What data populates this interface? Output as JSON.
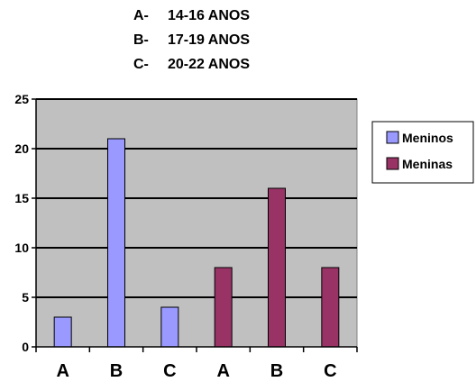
{
  "header_legend": [
    {
      "code": "A-",
      "label": "14-16 ANOS"
    },
    {
      "code": "B-",
      "label": "17-19 ANOS"
    },
    {
      "code": "C-",
      "label": "20-22 ANOS"
    }
  ],
  "chart_data": {
    "type": "bar",
    "categories": [
      "A",
      "B",
      "C",
      "A",
      "B",
      "C"
    ],
    "series": [
      {
        "name": "Meninos",
        "color": "#9999ff",
        "values": [
          3,
          21,
          4,
          null,
          null,
          null
        ]
      },
      {
        "name": "Meninas",
        "color": "#993366",
        "values": [
          null,
          null,
          null,
          8,
          16,
          8
        ]
      }
    ],
    "yticks": [
      "0",
      "5",
      "10",
      "15",
      "20",
      "25"
    ],
    "ylim": [
      0,
      25
    ],
    "grid": true,
    "plot_background": "#c0c0c0",
    "legend_position": "right"
  }
}
